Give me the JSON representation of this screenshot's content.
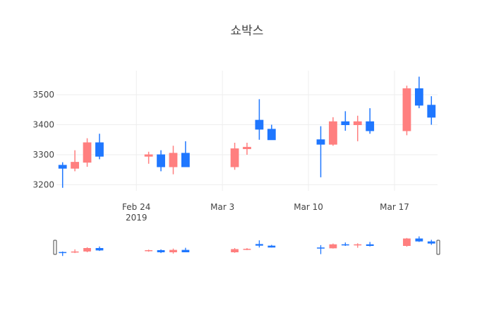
{
  "colors": {
    "up": "#ff7f7f",
    "down": "#1f77ff",
    "grid": "#eeeeee",
    "text": "#444444"
  },
  "chart_data": {
    "type": "candlestick",
    "title": "쇼박스",
    "xlabel": "",
    "ylabel": "",
    "ylim": [
      3180,
      3580
    ],
    "grid": true,
    "y_ticks": [
      3200,
      3300,
      3400,
      3500
    ],
    "x_ticks": [
      {
        "date": "2019-02-24",
        "label": "Feb 24",
        "sublabel": "2019"
      },
      {
        "date": "2019-03-03",
        "label": "Mar 3",
        "sublabel": ""
      },
      {
        "date": "2019-03-10",
        "label": "Mar 10",
        "sublabel": ""
      },
      {
        "date": "2019-03-17",
        "label": "Mar 17",
        "sublabel": ""
      }
    ],
    "x_range": [
      "2019-02-18",
      "2019-03-20"
    ],
    "rangeslider": true,
    "series": [
      {
        "x": [
          "2019-02-18",
          "2019-02-19",
          "2019-02-20",
          "2019-02-21",
          "2019-02-25",
          "2019-02-26",
          "2019-02-27",
          "2019-02-28",
          "2019-03-04",
          "2019-03-05",
          "2019-03-06",
          "2019-03-07",
          "2019-03-11",
          "2019-03-12",
          "2019-03-13",
          "2019-03-14",
          "2019-03-15",
          "2019-03-18",
          "2019-03-19",
          "2019-03-20"
        ],
        "open": [
          3265,
          3255,
          3275,
          3340,
          3295,
          3300,
          3260,
          3305,
          3260,
          3320,
          3415,
          3385,
          3350,
          3335,
          3410,
          3400,
          3410,
          3380,
          3520,
          3465
        ],
        "high": [
          3275,
          3315,
          3355,
          3370,
          3310,
          3315,
          3330,
          3345,
          3340,
          3340,
          3485,
          3400,
          3395,
          3425,
          3445,
          3430,
          3455,
          3530,
          3560,
          3495
        ],
        "low": [
          3190,
          3245,
          3260,
          3285,
          3270,
          3245,
          3235,
          3260,
          3250,
          3300,
          3350,
          3350,
          3225,
          3330,
          3380,
          3345,
          3370,
          3365,
          3455,
          3400
        ],
        "close": [
          3255,
          3275,
          3340,
          3295,
          3300,
          3260,
          3305,
          3260,
          3320,
          3325,
          3385,
          3350,
          3335,
          3410,
          3400,
          3410,
          3380,
          3520,
          3465,
          3425
        ]
      }
    ]
  }
}
